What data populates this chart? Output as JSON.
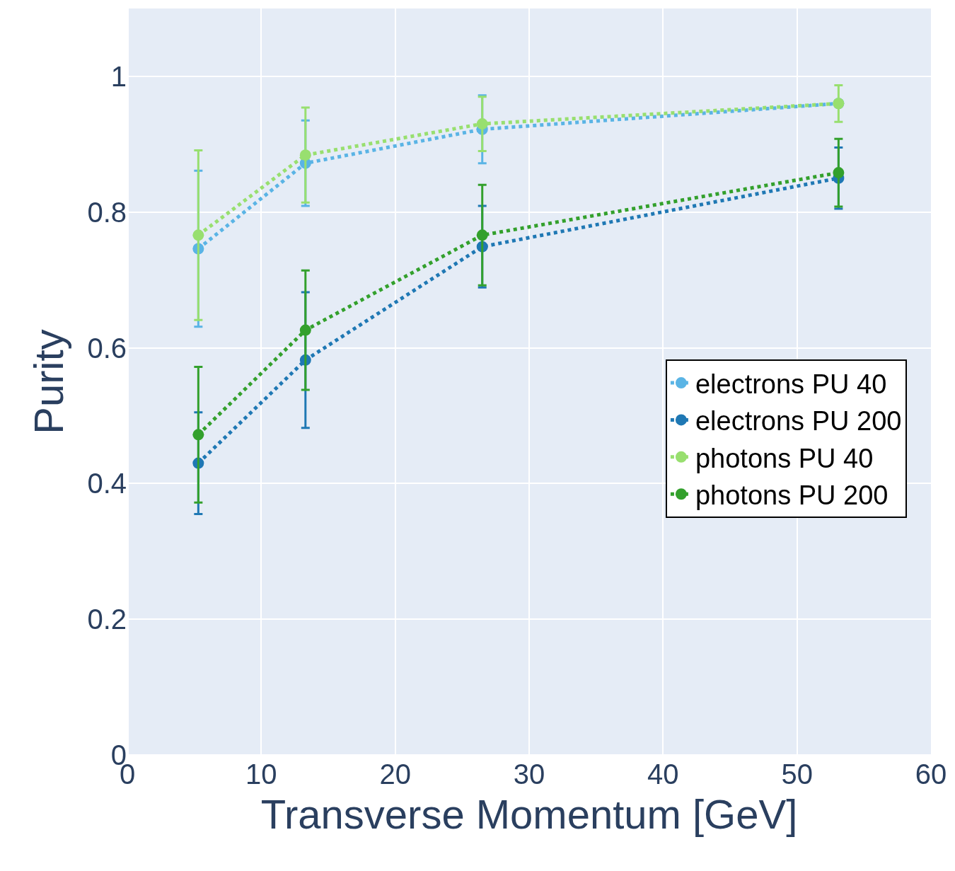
{
  "chart_data": {
    "type": "line",
    "xlabel": "Transverse Momentum [GeV]",
    "ylabel": "Purity",
    "x": [
      5.3,
      13.3,
      26.5,
      53.1
    ],
    "xlim": [
      0,
      60
    ],
    "xticks": [
      0,
      10,
      20,
      30,
      40,
      50,
      60
    ],
    "ylim": [
      0,
      1.1
    ],
    "yticks": [
      0,
      0.2,
      0.4,
      0.6,
      0.8,
      1
    ],
    "grid": true,
    "legend": "right",
    "marker": "circle",
    "line_style": "dotted",
    "series": [
      {
        "name": "electrons PU 40",
        "color": "#5ab4e5",
        "values": [
          0.746,
          0.872,
          0.922,
          0.96
        ],
        "errors": [
          0.115,
          0.063,
          0.05,
          null
        ]
      },
      {
        "name": "electrons PU 200",
        "color": "#1f78b4",
        "values": [
          0.43,
          0.582,
          0.749,
          0.85
        ],
        "errors": [
          0.075,
          0.1,
          0.06,
          0.045
        ]
      },
      {
        "name": "photons PU 40",
        "color": "#98df6f",
        "values": [
          0.766,
          0.884,
          0.93,
          0.96
        ],
        "errors": [
          0.125,
          0.07,
          0.04,
          0.027
        ]
      },
      {
        "name": "photons PU 200",
        "color": "#33a02c",
        "values": [
          0.472,
          0.626,
          0.766,
          0.858
        ],
        "errors": [
          0.1,
          0.088,
          0.074,
          0.05
        ]
      }
    ]
  }
}
